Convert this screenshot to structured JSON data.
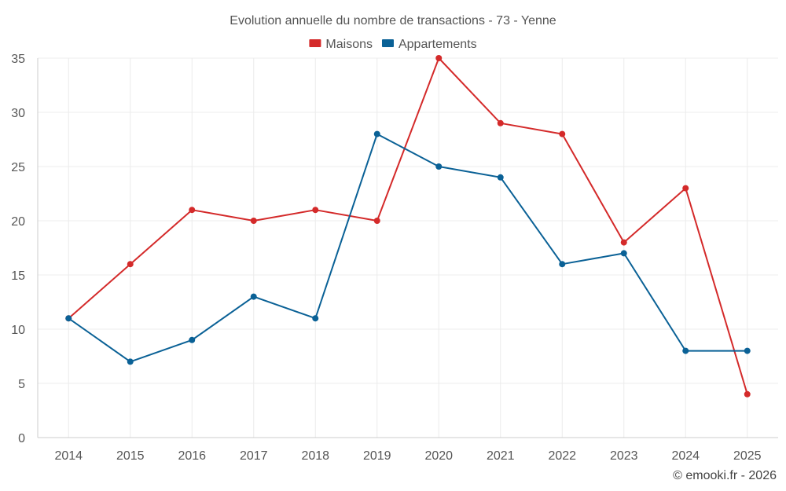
{
  "chart_data": {
    "type": "line",
    "title": "Evolution annuelle du nombre de transactions - 73 - Yenne",
    "categories": [
      "2014",
      "2015",
      "2016",
      "2017",
      "2018",
      "2019",
      "2020",
      "2021",
      "2022",
      "2023",
      "2024",
      "2025"
    ],
    "series": [
      {
        "name": "Maisons",
        "color": "#d42a2a",
        "values": [
          11,
          16,
          21,
          20,
          21,
          20,
          35,
          29,
          28,
          18,
          23,
          4
        ]
      },
      {
        "name": "Appartements",
        "color": "#0a6196",
        "values": [
          11,
          7,
          9,
          13,
          11,
          28,
          25,
          24,
          16,
          17,
          8,
          8
        ]
      }
    ],
    "ylim": [
      0,
      35
    ],
    "yticks": [
      0,
      5,
      10,
      15,
      20,
      25,
      30,
      35
    ],
    "xlabel": "",
    "ylabel": "",
    "grid": true,
    "legend_position": "top-center"
  },
  "credit": "© emooki.fr - 2026"
}
